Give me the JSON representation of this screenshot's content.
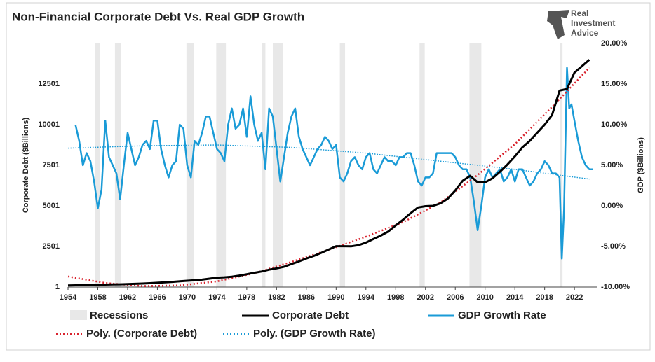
{
  "chart_data": {
    "type": "line",
    "title": "Non-Financial Corporate Debt Vs. Real GDP Growth",
    "logo": [
      "Real",
      "Investment",
      "Advice"
    ],
    "y_label": "Corporate Debt ($Billions)",
    "y2_label": "GDP ($Billions)",
    "xlim": [
      1954,
      2025
    ],
    "xticks": [
      1954,
      1958,
      1962,
      1966,
      1970,
      1974,
      1978,
      1982,
      1986,
      1990,
      1994,
      1998,
      2002,
      2006,
      2010,
      2014,
      2018,
      2022
    ],
    "ylim": [
      1,
      15001
    ],
    "yticks": [
      1,
      2501,
      5001,
      7501,
      10001,
      12501
    ],
    "y2lim": [
      -10,
      20
    ],
    "y2ticks": [
      {
        "value": -10,
        "label": "-10.00%"
      },
      {
        "value": -5,
        "label": "-5.00%"
      },
      {
        "value": 0,
        "label": "0.00%"
      },
      {
        "value": 5,
        "label": "5.00%"
      },
      {
        "value": 10,
        "label": "10.00%"
      },
      {
        "value": 15,
        "label": "15.00%"
      },
      {
        "value": 20,
        "label": "20.00%"
      }
    ],
    "recessions": {
      "name": "Recessions",
      "color": "#e8e8e8",
      "spans": [
        [
          1957.6,
          1958.3
        ],
        [
          1960.3,
          1961.1
        ],
        [
          1969.9,
          1970.9
        ],
        [
          1973.9,
          1975.2
        ],
        [
          1980.0,
          1980.5
        ],
        [
          1981.5,
          1982.9
        ],
        [
          1990.5,
          1991.2
        ],
        [
          2001.2,
          2001.9
        ],
        [
          2007.9,
          2009.5
        ],
        [
          2020.1,
          2020.4
        ]
      ]
    },
    "series": [
      {
        "name": "Corporate Debt",
        "color": "#000000",
        "style": "solid",
        "axis": "y",
        "x": [
          1954,
          1955,
          1956,
          1957,
          1958,
          1959,
          1960,
          1961,
          1962,
          1963,
          1964,
          1965,
          1966,
          1967,
          1968,
          1969,
          1970,
          1971,
          1972,
          1973,
          1974,
          1975,
          1976,
          1977,
          1978,
          1979,
          1980,
          1981,
          1982,
          1983,
          1984,
          1985,
          1986,
          1987,
          1988,
          1989,
          1990,
          1991,
          1992,
          1993,
          1994,
          1995,
          1996,
          1997,
          1998,
          1999,
          2000,
          2001,
          2002,
          2003,
          2004,
          2005,
          2006,
          2007,
          2008,
          2009,
          2010,
          2011,
          2012,
          2013,
          2014,
          2015,
          2016,
          2017,
          2018,
          2019,
          2020,
          2021,
          2022,
          2023,
          2024
        ],
        "values": [
          100,
          110,
          120,
          130,
          140,
          150,
          160,
          170,
          185,
          200,
          215,
          240,
          265,
          290,
          320,
          355,
          390,
          420,
          460,
          520,
          580,
          600,
          640,
          710,
          790,
          880,
          960,
          1070,
          1150,
          1250,
          1420,
          1580,
          1760,
          1920,
          2110,
          2310,
          2520,
          2520,
          2510,
          2580,
          2740,
          2960,
          3170,
          3420,
          3800,
          4150,
          4550,
          4900,
          4980,
          5000,
          5150,
          5450,
          5950,
          6550,
          6850,
          6450,
          6450,
          6700,
          7100,
          7550,
          8050,
          8600,
          9000,
          9500,
          10000,
          10600,
          12100,
          12200,
          13200,
          13600,
          14000
        ]
      },
      {
        "name": "GDP Growth Rate",
        "color": "#1a9bd7",
        "style": "solid",
        "axis": "y2",
        "x": [
          1955,
          1955.5,
          1956,
          1956.5,
          1957,
          1957.5,
          1958,
          1958.5,
          1959,
          1959.5,
          1960,
          1960.5,
          1961,
          1961.5,
          1962,
          1962.5,
          1963,
          1963.5,
          1964,
          1964.5,
          1965,
          1965.5,
          1966,
          1966.5,
          1967,
          1967.5,
          1968,
          1968.5,
          1969,
          1969.5,
          1970,
          1970.5,
          1971,
          1971.5,
          1972,
          1972.5,
          1973,
          1973.5,
          1974,
          1974.5,
          1975,
          1975.5,
          1976,
          1976.5,
          1977,
          1977.5,
          1978,
          1978.5,
          1979,
          1979.5,
          1980,
          1980.5,
          1981,
          1981.5,
          1982,
          1982.5,
          1983,
          1983.5,
          1984,
          1984.5,
          1985,
          1985.5,
          1986,
          1986.5,
          1987,
          1987.5,
          1988,
          1988.5,
          1989,
          1989.5,
          1990,
          1990.5,
          1991,
          1991.5,
          1992,
          1992.5,
          1993,
          1993.5,
          1994,
          1994.5,
          1995,
          1995.5,
          1996,
          1996.5,
          1997,
          1997.5,
          1998,
          1998.5,
          1999,
          1999.5,
          2000,
          2000.5,
          2001,
          2001.5,
          2002,
          2002.5,
          2003,
          2003.5,
          2004,
          2004.5,
          2005,
          2005.5,
          2006,
          2006.5,
          2007,
          2007.5,
          2008,
          2008.5,
          2009,
          2009.5,
          2010,
          2010.5,
          2011,
          2011.5,
          2012,
          2012.5,
          2013,
          2013.5,
          2014,
          2014.5,
          2015,
          2015.5,
          2016,
          2016.5,
          2017,
          2017.5,
          2018,
          2018.5,
          2019,
          2019.5,
          2020,
          2020.3,
          2020.6,
          2021,
          2021.3,
          2021.6,
          2022,
          2022.5,
          2023,
          2023.5,
          2024,
          2024.5
        ],
        "values": [
          10,
          8,
          5,
          6.5,
          5.5,
          3,
          -0.3,
          2,
          10.5,
          6,
          5,
          4,
          0.8,
          5,
          9,
          7,
          5,
          6,
          7.5,
          8,
          7,
          10.5,
          10.5,
          7,
          5,
          3.5,
          5,
          5.5,
          10,
          9.5,
          5,
          3.5,
          8,
          7.5,
          9,
          11,
          11,
          9,
          7,
          6.5,
          5.5,
          10,
          12,
          9.5,
          10,
          12,
          8.5,
          13.5,
          10,
          8,
          9,
          4.5,
          12,
          11,
          7,
          3,
          6,
          9,
          11,
          12,
          8.5,
          7,
          6,
          5,
          6,
          7,
          7.5,
          8.5,
          8,
          7,
          7.5,
          3.5,
          3,
          4,
          5.5,
          6,
          5,
          4.5,
          6,
          6.5,
          4.5,
          4,
          5,
          6,
          5.5,
          5.5,
          5,
          6,
          6,
          6.5,
          6.5,
          5,
          3,
          2.5,
          3.5,
          3.5,
          4,
          6.5,
          6.5,
          6.5,
          6.5,
          6.5,
          6,
          5,
          4.5,
          4.5,
          3.5,
          0.5,
          -3,
          0,
          3.5,
          4.5,
          3.5,
          4,
          4.5,
          3,
          3.5,
          4.5,
          3,
          4.5,
          4.5,
          3.5,
          2.5,
          3,
          4,
          4.5,
          5.5,
          5,
          4,
          4,
          3.5,
          -6.5,
          -0.5,
          17,
          12,
          12.5,
          10.5,
          8,
          6,
          5,
          4.5,
          4.5
        ]
      },
      {
        "name": "Poly. (Corporate Debt)",
        "color": "#d9232e",
        "style": "dotted",
        "axis": "y",
        "x": [
          1954,
          1959,
          1964,
          1969,
          1974,
          1979,
          1984,
          1989,
          1994,
          1999,
          2004,
          2009,
          2014,
          2019,
          2024
        ],
        "values": [
          650,
          250,
          60,
          100,
          350,
          850,
          1550,
          2300,
          3100,
          4000,
          5200,
          6900,
          8800,
          11100,
          13500
        ]
      },
      {
        "name": "Poly. (GDP Growth Rate)",
        "color": "#1a9bd7",
        "style": "dotted",
        "axis": "y2",
        "x": [
          1954,
          1964,
          1974,
          1984,
          1994,
          2004,
          2014,
          2024
        ],
        "values": [
          7.1,
          7.4,
          7.5,
          7.2,
          6.5,
          5.5,
          4.5,
          3.3
        ]
      }
    ]
  }
}
